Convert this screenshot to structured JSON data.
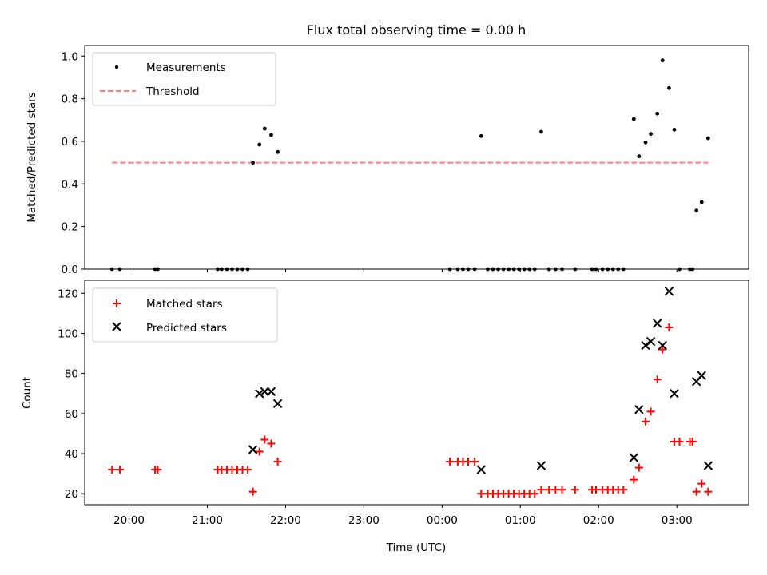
{
  "figure": {
    "title": "Flux total observing time = 0.00 h",
    "xlabel": "Time (UTC)",
    "background": "#ffffff"
  },
  "chart_data": [
    {
      "type": "scatter",
      "panel": "top",
      "ylabel": "Matched/Predicted stars",
      "xlim": [
        "19:26",
        "03:55"
      ],
      "ylim": [
        0,
        1.05
      ],
      "yticks": [
        "0.0",
        "0.2",
        "0.4",
        "0.6",
        "0.8",
        "1.0"
      ],
      "ytick_values": [
        0,
        0.2,
        0.4,
        0.6,
        0.8,
        1.0
      ],
      "xtick_times": [
        "20:00",
        "21:00",
        "22:00",
        "23:00",
        "00:00",
        "01:00",
        "02:00",
        "03:00"
      ],
      "legend": {
        "placement": "upper-left",
        "entries": [
          "Measurements",
          "Threshold"
        ]
      },
      "series": [
        {
          "name": "Measurements",
          "color": "#000000",
          "marker": "dot",
          "points": [
            [
              "19:47",
              0
            ],
            [
              "19:53",
              0
            ],
            [
              "20:20",
              0
            ],
            [
              "20:22",
              0
            ],
            [
              "21:08",
              0
            ],
            [
              "21:11",
              0
            ],
            [
              "21:15",
              0
            ],
            [
              "21:19",
              0
            ],
            [
              "21:23",
              0
            ],
            [
              "21:27",
              0
            ],
            [
              "21:31",
              0
            ],
            [
              "21:35",
              0.5
            ],
            [
              "21:40",
              0.585
            ],
            [
              "21:44",
              0.66
            ],
            [
              "21:49",
              0.63
            ],
            [
              "21:54",
              0.55
            ],
            [
              "00:06",
              0
            ],
            [
              "00:12",
              0
            ],
            [
              "00:16",
              0
            ],
            [
              "00:20",
              0
            ],
            [
              "00:25",
              0
            ],
            [
              "00:30",
              0.625
            ],
            [
              "00:35",
              0
            ],
            [
              "00:39",
              0
            ],
            [
              "00:43",
              0
            ],
            [
              "00:47",
              0
            ],
            [
              "00:51",
              0
            ],
            [
              "00:55",
              0
            ],
            [
              "00:59",
              0
            ],
            [
              "01:03",
              0
            ],
            [
              "01:07",
              0
            ],
            [
              "01:11",
              0
            ],
            [
              "01:16",
              0.645
            ],
            [
              "01:22",
              0
            ],
            [
              "01:27",
              0
            ],
            [
              "01:32",
              0
            ],
            [
              "01:42",
              0
            ],
            [
              "01:55",
              0
            ],
            [
              "01:58",
              0
            ],
            [
              "02:03",
              0
            ],
            [
              "02:07",
              0
            ],
            [
              "02:11",
              0
            ],
            [
              "02:15",
              0
            ],
            [
              "02:19",
              0
            ],
            [
              "02:27",
              0.705
            ],
            [
              "02:31",
              0.53
            ],
            [
              "02:36",
              0.595
            ],
            [
              "02:40",
              0.635
            ],
            [
              "02:45",
              0.73
            ],
            [
              "02:49",
              0.98
            ],
            [
              "02:54",
              0.85
            ],
            [
              "02:58",
              0.655
            ],
            [
              "03:02",
              0
            ],
            [
              "03:10",
              0
            ],
            [
              "03:12",
              0
            ],
            [
              "03:15",
              0.275
            ],
            [
              "03:19",
              0.315
            ],
            [
              "03:24",
              0.615
            ]
          ]
        },
        {
          "name": "Threshold",
          "color": "#ff7f7f",
          "style": "dashed",
          "y": 0.5,
          "x_range": [
            "19:47",
            "03:24"
          ]
        }
      ]
    },
    {
      "type": "scatter",
      "panel": "bottom",
      "ylabel": "Count",
      "xlim": [
        "19:26",
        "03:55"
      ],
      "ylim": [
        14.5,
        126.5
      ],
      "yticks": [
        "20",
        "40",
        "60",
        "80",
        "100",
        "120"
      ],
      "ytick_values": [
        20,
        40,
        60,
        80,
        100,
        120
      ],
      "xtick_labels": [
        "20:00",
        "21:00",
        "22:00",
        "23:00",
        "00:00",
        "01:00",
        "02:00",
        "03:00"
      ],
      "legend": {
        "placement": "upper-left",
        "entries": [
          "Matched stars",
          "Predicted stars"
        ]
      },
      "series": [
        {
          "name": "Matched stars",
          "color": "#ff0000",
          "marker": "plus",
          "points": [
            [
              "19:47",
              32
            ],
            [
              "19:53",
              32
            ],
            [
              "20:20",
              32
            ],
            [
              "20:22",
              32
            ],
            [
              "21:08",
              32
            ],
            [
              "21:11",
              32
            ],
            [
              "21:15",
              32
            ],
            [
              "21:19",
              32
            ],
            [
              "21:23",
              32
            ],
            [
              "21:27",
              32
            ],
            [
              "21:31",
              32
            ],
            [
              "21:35",
              21
            ],
            [
              "21:40",
              41
            ],
            [
              "21:44",
              47
            ],
            [
              "21:49",
              45
            ],
            [
              "21:54",
              36
            ],
            [
              "00:06",
              36
            ],
            [
              "00:12",
              36
            ],
            [
              "00:16",
              36
            ],
            [
              "00:20",
              36
            ],
            [
              "00:25",
              36
            ],
            [
              "00:30",
              20
            ],
            [
              "00:35",
              20
            ],
            [
              "00:39",
              20
            ],
            [
              "00:43",
              20
            ],
            [
              "00:47",
              20
            ],
            [
              "00:51",
              20
            ],
            [
              "00:55",
              20
            ],
            [
              "00:59",
              20
            ],
            [
              "01:03",
              20
            ],
            [
              "01:07",
              20
            ],
            [
              "01:11",
              20
            ],
            [
              "01:16",
              22
            ],
            [
              "01:22",
              22
            ],
            [
              "01:27",
              22
            ],
            [
              "01:32",
              22
            ],
            [
              "01:42",
              22
            ],
            [
              "01:55",
              22
            ],
            [
              "01:58",
              22
            ],
            [
              "02:03",
              22
            ],
            [
              "02:07",
              22
            ],
            [
              "02:11",
              22
            ],
            [
              "02:15",
              22
            ],
            [
              "02:19",
              22
            ],
            [
              "02:27",
              27
            ],
            [
              "02:31",
              33
            ],
            [
              "02:36",
              56
            ],
            [
              "02:40",
              61
            ],
            [
              "02:45",
              77
            ],
            [
              "02:49",
              92
            ],
            [
              "02:54",
              103
            ],
            [
              "02:58",
              46
            ],
            [
              "03:02",
              46
            ],
            [
              "03:10",
              46
            ],
            [
              "03:12",
              46
            ],
            [
              "03:15",
              21
            ],
            [
              "03:19",
              25
            ],
            [
              "03:24",
              21
            ]
          ]
        },
        {
          "name": "Predicted stars",
          "color": "#000000",
          "marker": "x",
          "points": [
            [
              "21:35",
              42
            ],
            [
              "21:40",
              70
            ],
            [
              "21:44",
              71
            ],
            [
              "21:49",
              71
            ],
            [
              "21:54",
              65
            ],
            [
              "00:30",
              32
            ],
            [
              "01:16",
              34
            ],
            [
              "02:27",
              38
            ],
            [
              "02:31",
              62
            ],
            [
              "02:36",
              94
            ],
            [
              "02:40",
              96
            ],
            [
              "02:45",
              105
            ],
            [
              "02:49",
              94
            ],
            [
              "02:54",
              121
            ],
            [
              "02:58",
              70
            ],
            [
              "03:15",
              76
            ],
            [
              "03:19",
              79
            ],
            [
              "03:24",
              34
            ]
          ]
        }
      ]
    }
  ]
}
